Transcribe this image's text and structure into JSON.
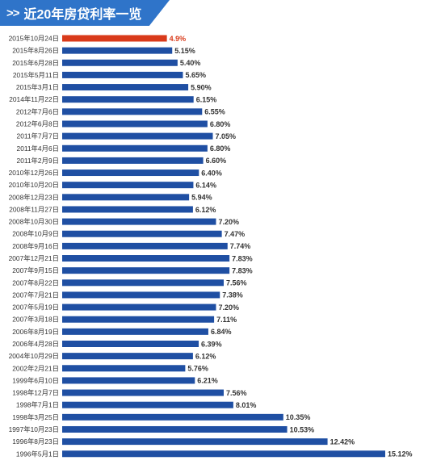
{
  "header": {
    "chevrons": ">>",
    "title": "近20年房贷利率一览"
  },
  "colors": {
    "bar": "#1f4fa3",
    "highlight_bar": "#d93a1a",
    "highlight_text": "#d93a1a",
    "header_bg": "#2f74c9",
    "text": "#333333"
  },
  "chart_data": {
    "type": "bar",
    "orientation": "horizontal",
    "title": "近20年房贷利率一览",
    "xlabel": "",
    "ylabel": "",
    "xlim": [
      0,
      15.12
    ],
    "grid": false,
    "legend": "none",
    "highlight_index": 0,
    "categories": [
      "2015年10月24日",
      "2015年8月26日",
      "2015年6月28日",
      "2015年5月11日",
      "2015年3月1日",
      "2014年11月22日",
      "2012年7月6日",
      "2012年6月8日",
      "2011年7月7日",
      "2011年4月6日",
      "2011年2月9日",
      "2010年12月26日",
      "2010年10月20日",
      "2008年12月23日",
      "2008年11月27日",
      "2008年10月30日",
      "2008年10月9日",
      "2008年9月16日",
      "2007年12月21日",
      "2007年9月15日",
      "2007年8月22日",
      "2007年7月21日",
      "2007年5月19日",
      "2007年3月18日",
      "2006年8月19日",
      "2006年4月28日",
      "2004年10月29日",
      "2002年2月21日",
      "1999年6月10日",
      "1998年12月7日",
      "1998年7月1日",
      "1998年3月25日",
      "1997年10月23日",
      "1996年8月23日",
      "1996年5月1日"
    ],
    "values": [
      4.9,
      5.15,
      5.4,
      5.65,
      5.9,
      6.15,
      6.55,
      6.8,
      7.05,
      6.8,
      6.6,
      6.4,
      6.14,
      5.94,
      6.12,
      7.2,
      7.47,
      7.74,
      7.83,
      7.83,
      7.56,
      7.38,
      7.2,
      7.11,
      6.84,
      6.39,
      6.12,
      5.76,
      6.21,
      7.56,
      8.01,
      10.35,
      10.53,
      12.42,
      15.12
    ],
    "value_labels": [
      "4.9%",
      "5.15%",
      "5.40%",
      "5.65%",
      "5.90%",
      "6.15%",
      "6.55%",
      "6.80%",
      "7.05%",
      "6.80%",
      "6.60%",
      "6.40%",
      "6.14%",
      "5.94%",
      "6.12%",
      "7.20%",
      "7.47%",
      "7.74%",
      "7.83%",
      "7.83%",
      "7.56%",
      "7.38%",
      "7.20%",
      "7.11%",
      "6.84%",
      "6.39%",
      "6.12%",
      "5.76%",
      "6.21%",
      "7.56%",
      "8.01%",
      "10.35%",
      "10.53%",
      "12.42%",
      "15.12%"
    ]
  }
}
